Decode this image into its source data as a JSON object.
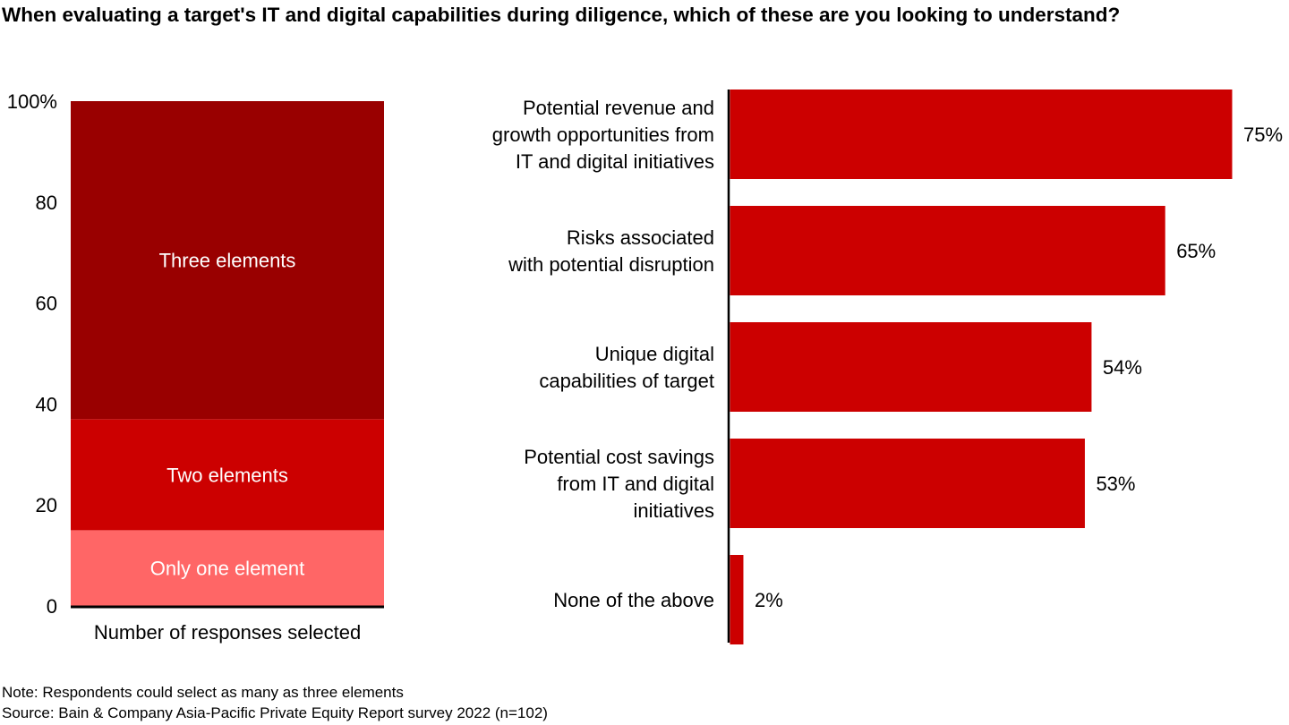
{
  "title": "When evaluating a target's IT and digital capabilities during diligence, which of these are you looking to understand?",
  "note": "Note: Respondents could select as many as three elements",
  "source": "Source: Bain & Company Asia-Pacific Private Equity Report survey 2022 (n=102)",
  "chart_data": [
    {
      "type": "bar",
      "stacked": true,
      "categories": [
        "Number of responses selected"
      ],
      "xlabel": "Number of responses selected",
      "ylim": [
        0,
        100
      ],
      "yticks": [
        "0",
        "20",
        "40",
        "60",
        "80",
        "100%"
      ],
      "series": [
        {
          "name": "Only one element",
          "values": [
            15
          ],
          "color": "#ff6666"
        },
        {
          "name": "Two elements",
          "values": [
            22
          ],
          "color": "#cc0000"
        },
        {
          "name": "Three elements",
          "values": [
            63
          ],
          "color": "#990000"
        }
      ]
    },
    {
      "type": "bar",
      "orientation": "horizontal",
      "unit": "%",
      "xlim": [
        0,
        80
      ],
      "color": "#cc0000",
      "categories": [
        [
          "Potential revenue and",
          "growth opportunities from",
          "IT and digital initiatives"
        ],
        [
          "Risks associated",
          "with potential disruption"
        ],
        [
          "Unique digital",
          "capabilities of target"
        ],
        [
          "Potential cost savings",
          "from IT and digital",
          "initiatives"
        ],
        [
          "None of the above"
        ]
      ],
      "values": [
        75,
        65,
        54,
        53,
        2
      ],
      "data_labels": [
        "75%",
        "65%",
        "54%",
        "53%",
        "2%"
      ]
    }
  ]
}
